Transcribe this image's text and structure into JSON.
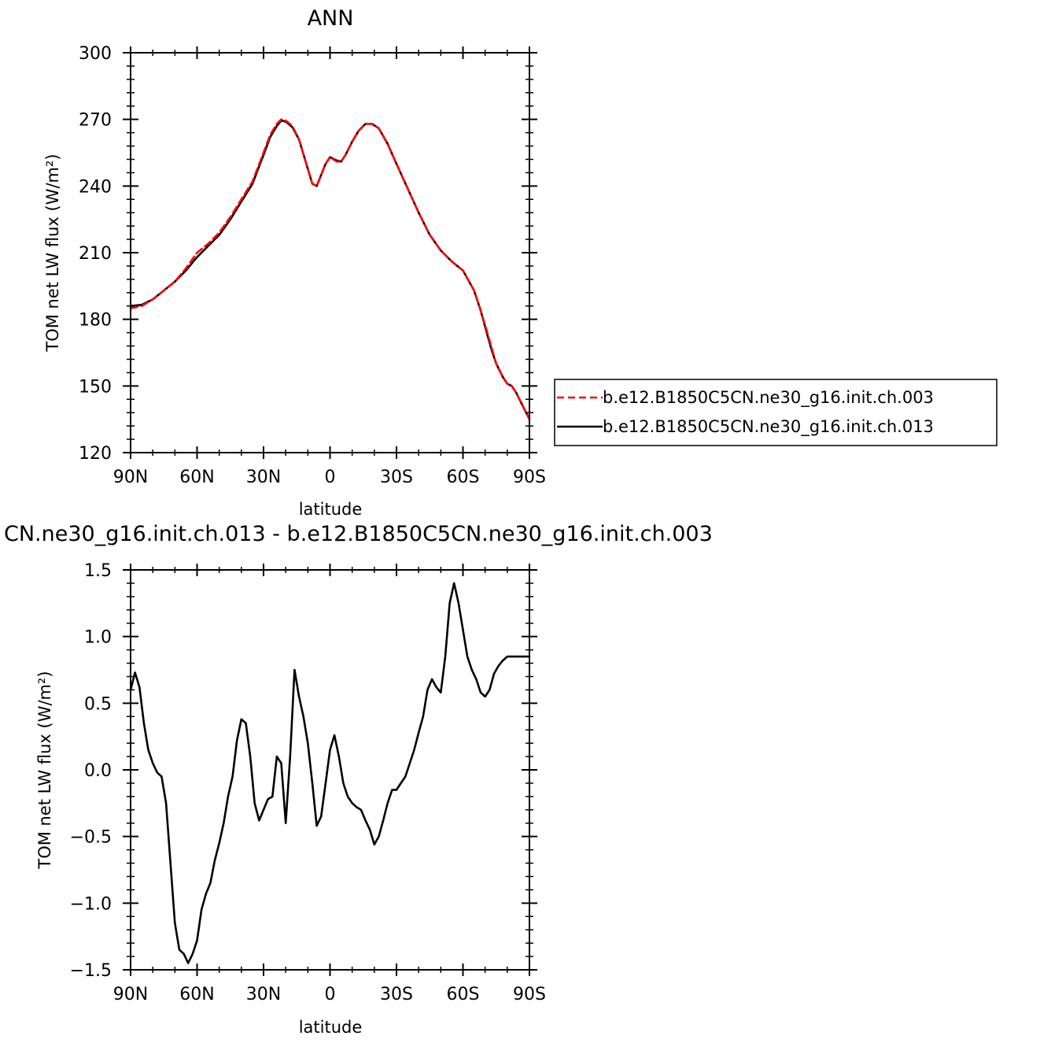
{
  "chart_data": [
    {
      "type": "line",
      "title": "ANN",
      "xlabel": "latitude",
      "ylabel": "TOM net LW flux (W/m²)",
      "xlim": [
        90,
        -90
      ],
      "ylim": [
        120,
        300
      ],
      "xticks": [
        90,
        60,
        30,
        0,
        -30,
        -60,
        -90
      ],
      "xtick_labels": [
        "90N",
        "60N",
        "30N",
        "0",
        "30S",
        "60S",
        "90S"
      ],
      "yticks": [
        120,
        150,
        180,
        210,
        240,
        270,
        300
      ],
      "ytick_labels": [
        "120",
        "150",
        "180",
        "210",
        "240",
        "270",
        "300"
      ],
      "x": [
        90,
        85,
        80,
        75,
        70,
        65,
        60,
        55,
        50,
        45,
        40,
        35,
        30,
        27,
        24,
        22,
        20,
        17,
        14,
        11,
        8,
        6,
        4,
        2,
        0,
        -3,
        -5,
        -7,
        -10,
        -13,
        -16,
        -19,
        -22,
        -26,
        -30,
        -35,
        -40,
        -45,
        -50,
        -55,
        -60,
        -65,
        -68,
        -71,
        -73,
        -75,
        -78,
        -80,
        -82,
        -84,
        -86,
        -88,
        -90
      ],
      "series": [
        {
          "name": "b.e12.B1850C5CN.ne30_g16.init.ch.003",
          "color": "#ff0000",
          "dash": "dashed",
          "values": [
            185,
            186,
            189,
            193,
            197,
            203,
            210,
            214,
            219,
            226,
            234,
            242,
            255,
            263,
            268,
            270,
            269.5,
            267,
            261,
            251,
            241,
            240,
            245,
            250,
            253,
            251,
            251,
            254,
            260,
            265,
            268,
            268,
            266,
            259,
            250,
            239,
            228,
            218,
            211,
            206,
            202,
            193,
            184,
            174,
            167,
            160,
            154,
            151,
            150,
            147,
            143,
            139,
            135
          ]
        },
        {
          "name": "b.e12.B1850C5CN.ne30_g16.init.ch.013",
          "color": "#000000",
          "dash": "solid",
          "values": [
            186,
            186.5,
            189,
            193,
            197,
            202,
            208,
            213,
            218,
            225,
            233,
            241,
            254,
            262,
            267,
            269.5,
            269,
            266.5,
            261,
            251,
            241,
            240,
            245,
            250,
            253,
            251.5,
            251,
            254,
            260,
            265,
            268,
            268,
            266,
            259,
            250,
            239,
            228,
            218,
            211,
            206,
            202,
            193,
            184,
            173,
            166,
            160,
            154,
            151,
            150,
            147,
            143,
            139,
            135
          ]
        }
      ],
      "legend_position": "right"
    },
    {
      "type": "line",
      "title": "CN.ne30_g16.init.ch.013 - b.e12.B1850C5CN.ne30_g16.init.ch.003",
      "xlabel": "latitude",
      "ylabel": "TOM net LW flux (W/m²)",
      "xlim": [
        90,
        -90
      ],
      "ylim": [
        -1.5,
        1.5
      ],
      "xticks": [
        90,
        60,
        30,
        0,
        -30,
        -60,
        -90
      ],
      "xtick_labels": [
        "90N",
        "60N",
        "30N",
        "0",
        "30S",
        "60S",
        "90S"
      ],
      "yticks": [
        -1.5,
        -1.0,
        -0.5,
        0.0,
        0.5,
        1.0,
        1.5
      ],
      "ytick_labels": [
        "−1.5",
        "−1.0",
        "−0.5",
        "0.0",
        "0.5",
        "1.0",
        "1.5"
      ],
      "x": [
        90,
        88,
        86,
        84,
        82,
        80,
        78,
        76,
        74,
        72,
        70,
        68,
        66,
        64,
        62,
        60,
        58,
        56,
        54,
        52,
        50,
        48,
        46,
        44,
        42,
        40,
        38,
        36,
        34,
        32,
        30,
        28,
        26,
        24,
        22,
        20,
        18,
        16,
        14,
        12,
        10,
        8,
        6,
        4,
        2,
        0,
        -2,
        -4,
        -6,
        -8,
        -10,
        -12,
        -14,
        -16,
        -18,
        -20,
        -22,
        -24,
        -26,
        -28,
        -30,
        -32,
        -34,
        -36,
        -38,
        -40,
        -42,
        -44,
        -46,
        -48,
        -50,
        -52,
        -54,
        -56,
        -58,
        -60,
        -62,
        -64,
        -66,
        -68,
        -70,
        -72,
        -74,
        -76,
        -78,
        -80,
        -82,
        -84,
        -86,
        -88,
        -90
      ],
      "series": [
        {
          "name": "",
          "color": "#000000",
          "dash": "solid",
          "values": [
            0.6,
            0.73,
            0.62,
            0.35,
            0.15,
            0.05,
            -0.02,
            -0.05,
            -0.25,
            -0.7,
            -1.15,
            -1.35,
            -1.38,
            -1.45,
            -1.38,
            -1.28,
            -1.05,
            -0.93,
            -0.85,
            -0.68,
            -0.55,
            -0.4,
            -0.2,
            -0.05,
            0.22,
            0.38,
            0.35,
            0.1,
            -0.25,
            -0.38,
            -0.3,
            -0.22,
            -0.2,
            0.1,
            0.05,
            -0.4,
            0.1,
            0.75,
            0.55,
            0.4,
            0.2,
            -0.1,
            -0.42,
            -0.35,
            -0.1,
            0.15,
            0.26,
            0.1,
            -0.1,
            -0.2,
            -0.25,
            -0.28,
            -0.3,
            -0.38,
            -0.45,
            -0.56,
            -0.5,
            -0.38,
            -0.25,
            -0.15,
            -0.15,
            -0.1,
            -0.05,
            0.05,
            0.15,
            0.28,
            0.4,
            0.6,
            0.68,
            0.62,
            0.58,
            0.85,
            1.25,
            1.4,
            1.25,
            1.05,
            0.85,
            0.75,
            0.68,
            0.58,
            0.55,
            0.6,
            0.72,
            0.78,
            0.82,
            0.85,
            0.85,
            0.85,
            0.85,
            0.85,
            0.85
          ]
        }
      ]
    }
  ]
}
